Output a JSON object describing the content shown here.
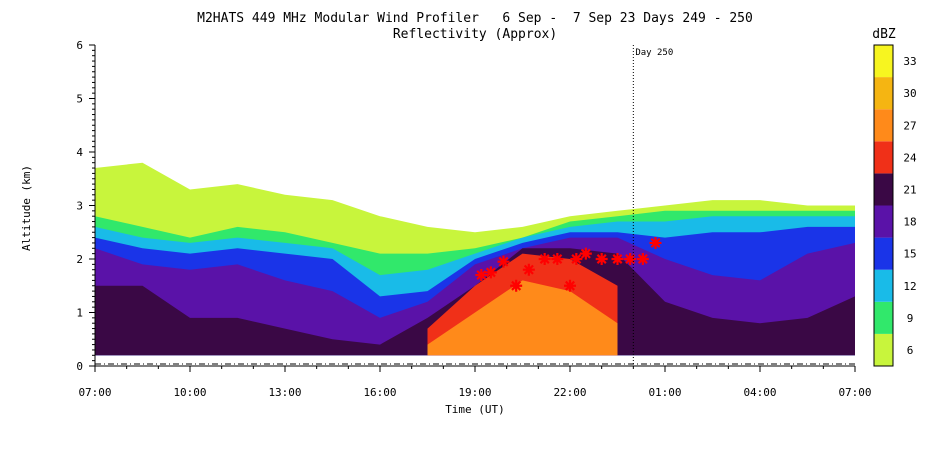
{
  "chart_data": {
    "type": "heatmap",
    "title": "M2HATS 449 MHz Modular Wind Profiler   6 Sep -  7 Sep 23 Days 249 - 250",
    "subtitle": "Reflectivity (Approx)",
    "xlabel": "Time (UT)",
    "ylabel": "Altitude (km)",
    "x_ticks": [
      "07:00",
      "10:00",
      "13:00",
      "16:00",
      "19:00",
      "22:00",
      "01:00",
      "04:00",
      "07:00"
    ],
    "x_range_hours_since_start": [
      0,
      24
    ],
    "y_ticks": [
      "0",
      "1",
      "2",
      "3",
      "4",
      "5",
      "6"
    ],
    "ylim": [
      0,
      6
    ],
    "day_marker": {
      "label": "Day 250",
      "x_hours_since_start": 17
    },
    "colorbar": {
      "unit": "dBZ",
      "levels": [
        6,
        9,
        12,
        15,
        18,
        21,
        24,
        27,
        30,
        33
      ],
      "colors": [
        "#c8f53c",
        "#31e86b",
        "#19bbe8",
        "#1a34e8",
        "#5a12a8",
        "#3a0845",
        "#f03018",
        "#ff8a1a",
        "#f5b512",
        "#f7f520"
      ]
    },
    "layer_tops_km": {
      "x_hours_since_start": [
        0,
        1.5,
        3,
        4.5,
        6,
        7.5,
        9,
        10.5,
        12,
        13.5,
        15,
        16.5,
        18,
        19.5,
        21,
        22.5,
        24
      ],
      "dbz6": [
        3.7,
        3.8,
        3.3,
        3.4,
        3.2,
        3.1,
        2.8,
        2.6,
        2.5,
        2.6,
        2.8,
        2.9,
        3.0,
        3.1,
        3.1,
        3.0,
        3.0
      ],
      "dbz9": [
        2.8,
        2.6,
        2.4,
        2.6,
        2.5,
        2.3,
        2.1,
        2.1,
        2.2,
        2.4,
        2.7,
        2.8,
        2.9,
        2.9,
        2.9,
        2.9,
        2.9
      ],
      "dbz12": [
        2.6,
        2.4,
        2.3,
        2.4,
        2.3,
        2.2,
        1.7,
        1.8,
        2.1,
        2.4,
        2.6,
        2.7,
        2.7,
        2.8,
        2.8,
        2.8,
        2.8
      ],
      "dbz15": [
        2.4,
        2.2,
        2.1,
        2.2,
        2.1,
        2.0,
        1.3,
        1.4,
        2.0,
        2.3,
        2.5,
        2.5,
        2.4,
        2.5,
        2.5,
        2.6,
        2.6
      ],
      "dbz18": [
        2.2,
        1.9,
        1.8,
        1.9,
        1.6,
        1.4,
        0.9,
        1.2,
        1.9,
        2.2,
        2.4,
        2.4,
        2.0,
        1.7,
        1.6,
        2.1,
        2.3
      ],
      "dbz21": [
        1.5,
        1.5,
        0.9,
        0.9,
        0.7,
        0.5,
        0.4,
        0.9,
        1.5,
        2.2,
        2.2,
        2.1,
        1.2,
        0.9,
        0.8,
        0.9,
        1.3
      ],
      "dbz24": [
        0,
        0,
        0,
        0,
        0,
        0,
        0,
        0.7,
        1.5,
        2.1,
        2.0,
        1.5,
        0,
        0,
        0,
        0,
        0
      ],
      "dbz27": [
        0,
        0,
        0,
        0,
        0,
        0,
        0,
        0.4,
        1.0,
        1.6,
        1.4,
        0.8,
        0,
        0,
        0,
        0,
        0
      ]
    },
    "layer_base_km": 0.2,
    "markers": {
      "symbol": "asterisk",
      "color": "#ff0000",
      "x_hours_since_start": [
        12.2,
        12.5,
        12.9,
        13.3,
        13.7,
        14.2,
        14.6,
        15.0,
        15.2,
        15.5,
        16.0,
        16.5,
        16.9,
        17.3,
        17.7
      ],
      "y_km": [
        1.7,
        1.75,
        1.95,
        1.5,
        1.8,
        2.0,
        2.0,
        1.5,
        2.0,
        2.1,
        2.0,
        2.0,
        2.0,
        2.0,
        2.3
      ]
    }
  }
}
